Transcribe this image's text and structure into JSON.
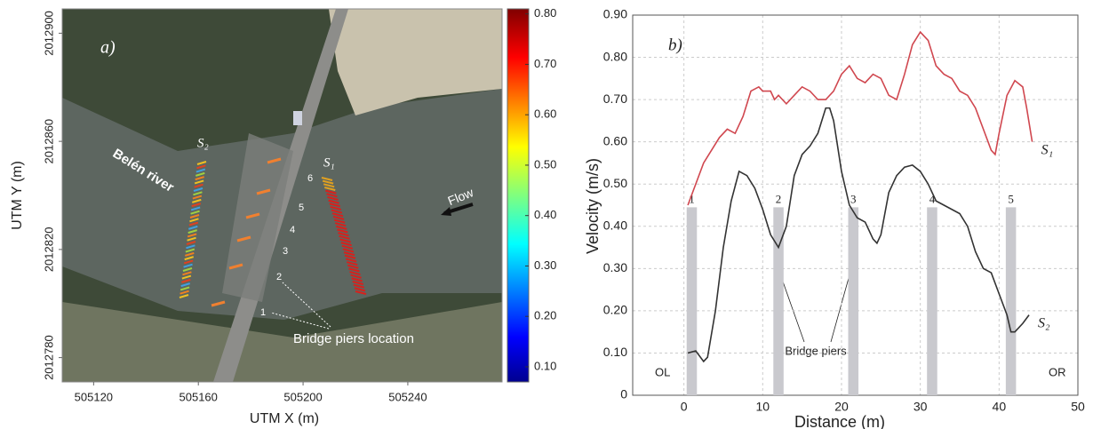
{
  "chart_data": [
    {
      "type": "map",
      "panel_label": "a)",
      "xlabel": "UTM X (m)",
      "ylabel": "UTM Y (m)",
      "xlim": [
        505108,
        505276
      ],
      "ylim": [
        2012771,
        2012909
      ],
      "xticks": [
        505120,
        505160,
        505200,
        505240
      ],
      "yticks": [
        2012780,
        2012820,
        2012860,
        2012900
      ],
      "colorbar": {
        "lim": [
          0.07,
          0.81
        ],
        "ticks": [
          {
            "value": 0.1,
            "label": "0.10"
          },
          {
            "value": 0.2,
            "label": "0.20"
          },
          {
            "value": 0.3,
            "label": "0.30"
          },
          {
            "value": 0.4,
            "label": "0.40"
          },
          {
            "value": 0.5,
            "label": "0.50"
          },
          {
            "value": 0.6,
            "label": "0.60"
          },
          {
            "value": 0.7,
            "label": "0.70"
          },
          {
            "value": 0.8,
            "label": "0.80"
          }
        ]
      },
      "annotations": {
        "river": "Belén river",
        "flow": "Flow",
        "s1": "S₁",
        "s2": "S₂",
        "piers": "Bridge piers location"
      },
      "pier_labels": [
        "1",
        "2",
        "3",
        "4",
        "5",
        "6"
      ]
    },
    {
      "type": "line",
      "panel_label": "b)",
      "xlabel": "Distance (m)",
      "ylabel": "Velocity (m/s)",
      "xlim": [
        -6.5,
        50
      ],
      "ylim": [
        0,
        0.9
      ],
      "xticks": [
        0,
        10,
        20,
        30,
        40,
        50
      ],
      "yticks": [
        0,
        {
          "value": 0.1,
          "label": "0.10"
        },
        {
          "value": 0.2,
          "label": "0.20"
        },
        {
          "value": 0.3,
          "label": "0.30"
        },
        {
          "value": 0.4,
          "label": "0.40"
        },
        {
          "value": 0.5,
          "label": "0.50"
        },
        {
          "value": 0.6,
          "label": "0.60"
        },
        {
          "value": 0.7,
          "label": "0.70"
        },
        {
          "value": 0.8,
          "label": "0.80"
        },
        {
          "value": 0.9,
          "label": "0.90"
        }
      ],
      "grid": true,
      "series": [
        {
          "name": "S₁",
          "color": "#d0474f",
          "x": [
            0.5,
            1.5,
            2.5,
            3.5,
            4.5,
            5.5,
            6.5,
            7.5,
            8.5,
            9.5,
            10,
            11,
            11.5,
            12,
            13,
            14,
            15,
            16,
            17,
            18,
            19,
            20,
            21,
            22,
            23,
            24,
            25,
            26,
            27,
            28,
            29,
            30,
            31,
            32,
            33,
            34,
            35,
            36,
            37,
            38,
            39,
            39.5,
            40,
            41,
            42,
            43,
            43.5,
            44.2
          ],
          "values": [
            0.45,
            0.5,
            0.55,
            0.58,
            0.61,
            0.63,
            0.62,
            0.66,
            0.72,
            0.73,
            0.72,
            0.72,
            0.7,
            0.71,
            0.69,
            0.71,
            0.73,
            0.72,
            0.7,
            0.7,
            0.72,
            0.76,
            0.78,
            0.75,
            0.74,
            0.76,
            0.75,
            0.71,
            0.7,
            0.76,
            0.83,
            0.86,
            0.84,
            0.78,
            0.76,
            0.75,
            0.72,
            0.71,
            0.68,
            0.63,
            0.58,
            0.57,
            0.62,
            0.71,
            0.745,
            0.73,
            0.68,
            0.6
          ]
        },
        {
          "name": "S₂",
          "color": "#333333",
          "x": [
            0.5,
            1.5,
            2.5,
            3,
            4,
            5,
            6,
            7,
            8,
            9,
            10,
            11,
            12,
            13,
            14,
            15,
            16,
            17,
            18,
            18.5,
            19,
            20,
            21,
            22,
            23,
            24,
            24.5,
            25,
            26,
            27,
            28,
            29,
            30,
            31,
            32,
            33,
            34,
            35,
            36,
            37,
            38,
            39,
            40,
            41,
            41.5,
            42,
            43,
            43.8
          ],
          "values": [
            0.1,
            0.105,
            0.08,
            0.09,
            0.2,
            0.35,
            0.46,
            0.53,
            0.52,
            0.49,
            0.44,
            0.38,
            0.35,
            0.4,
            0.52,
            0.57,
            0.59,
            0.62,
            0.68,
            0.68,
            0.65,
            0.53,
            0.45,
            0.42,
            0.41,
            0.37,
            0.36,
            0.38,
            0.48,
            0.52,
            0.54,
            0.545,
            0.53,
            0.5,
            0.46,
            0.45,
            0.44,
            0.43,
            0.4,
            0.34,
            0.3,
            0.29,
            0.24,
            0.19,
            0.15,
            0.15,
            0.17,
            0.19
          ]
        }
      ],
      "piers": {
        "labels": [
          "1",
          "2",
          "3",
          "4",
          "5"
        ],
        "x": [
          1,
          12,
          21.5,
          31.5,
          41.5
        ],
        "top": 0.445,
        "color": "#c9c9ce"
      },
      "annotations": {
        "piers": "Bridge piers",
        "left": "OL",
        "right": "OR"
      }
    }
  ]
}
